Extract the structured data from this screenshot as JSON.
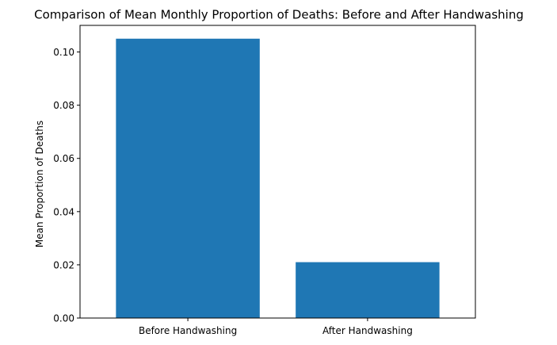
{
  "chart_data": {
    "type": "bar",
    "title": "Comparison of Mean Monthly Proportion of Deaths: Before and After Handwashing",
    "xlabel": "",
    "ylabel": "Mean Proportion of Deaths",
    "categories": [
      "Before Handwashing",
      "After Handwashing"
    ],
    "values": [
      0.105,
      0.021
    ],
    "ylim": [
      0,
      0.11
    ],
    "yticks": [
      0.0,
      0.02,
      0.04,
      0.06,
      0.08,
      0.1
    ],
    "ytick_labels": [
      "0.00",
      "0.02",
      "0.04",
      "0.06",
      "0.08",
      "0.10"
    ],
    "grid": false,
    "bar_color": "#1f77b4"
  }
}
